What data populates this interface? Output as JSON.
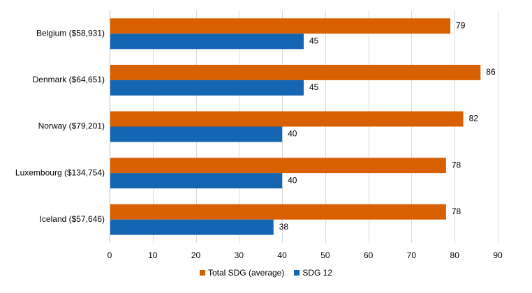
{
  "chart_data": {
    "type": "bar",
    "orientation": "horizontal",
    "categories": [
      "Belgium ($58,931)",
      "Denmark ($64,651)",
      "Norway ($79,201)",
      "Luxembourg ($134,754)",
      "Iceland ($57,646)"
    ],
    "series": [
      {
        "name": "Total SDG (average)",
        "color": "#D86000",
        "values": [
          79,
          86,
          82,
          78,
          78
        ]
      },
      {
        "name": "SDG 12",
        "color": "#1466B2",
        "values": [
          45,
          45,
          40,
          40,
          38
        ]
      }
    ],
    "xlim": [
      0,
      90
    ],
    "xticks": [
      0,
      10,
      20,
      30,
      40,
      50,
      60,
      70,
      80,
      90
    ],
    "grid": "vertical",
    "legend_position": "bottom"
  }
}
